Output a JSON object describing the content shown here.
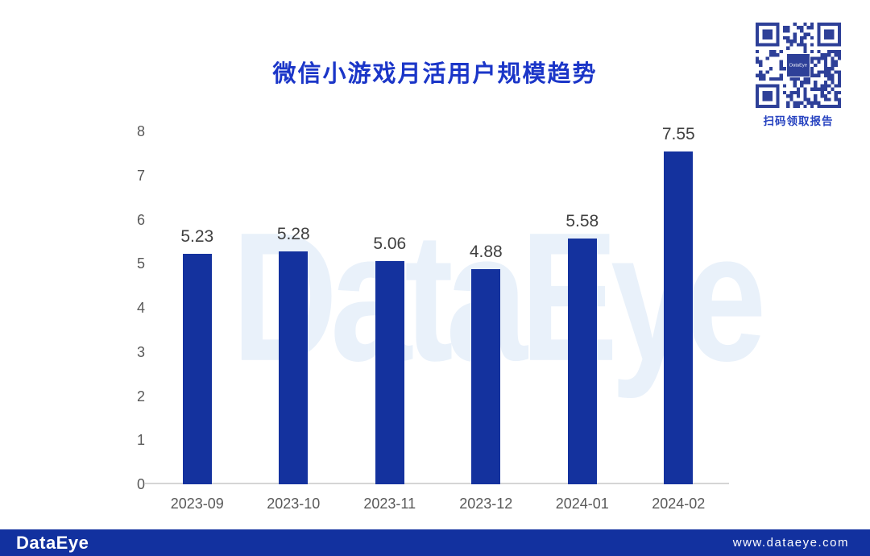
{
  "slide": {
    "title": "微信小游戏月活用户规模趋势",
    "watermark": "DataEye",
    "qr": {
      "caption": "扫码领取报告",
      "center_logo": "DataEye"
    },
    "footer": {
      "logo": "DataEye",
      "url": "www.dataeye.com"
    },
    "colors": {
      "bar": "#14329E",
      "title": "#1B36C8",
      "caption": "#2743C0",
      "footer_bg": "#12319F",
      "axis_text": "#595959",
      "value_text": "#404040",
      "watermark": "#E9F1FA",
      "qr": "#2E4098"
    }
  },
  "chart_data": {
    "type": "bar",
    "title": "微信小游戏月活用户规模趋势",
    "categories": [
      "2023-09",
      "2023-10",
      "2023-11",
      "2023-12",
      "2024-01",
      "2024-02"
    ],
    "values": [
      5.23,
      5.28,
      5.06,
      4.88,
      5.58,
      7.55
    ],
    "value_labels": [
      "5.23",
      "5.28",
      "5.06",
      "4.88",
      "5.58",
      "7.55"
    ],
    "xlabel": "",
    "ylabel": "",
    "ylim": [
      0,
      8
    ],
    "ytick_step": 1,
    "yticks": [
      0,
      1,
      2,
      3,
      4,
      5,
      6,
      7,
      8
    ],
    "grid": false,
    "legend": null,
    "bar_color": "#14329E"
  }
}
